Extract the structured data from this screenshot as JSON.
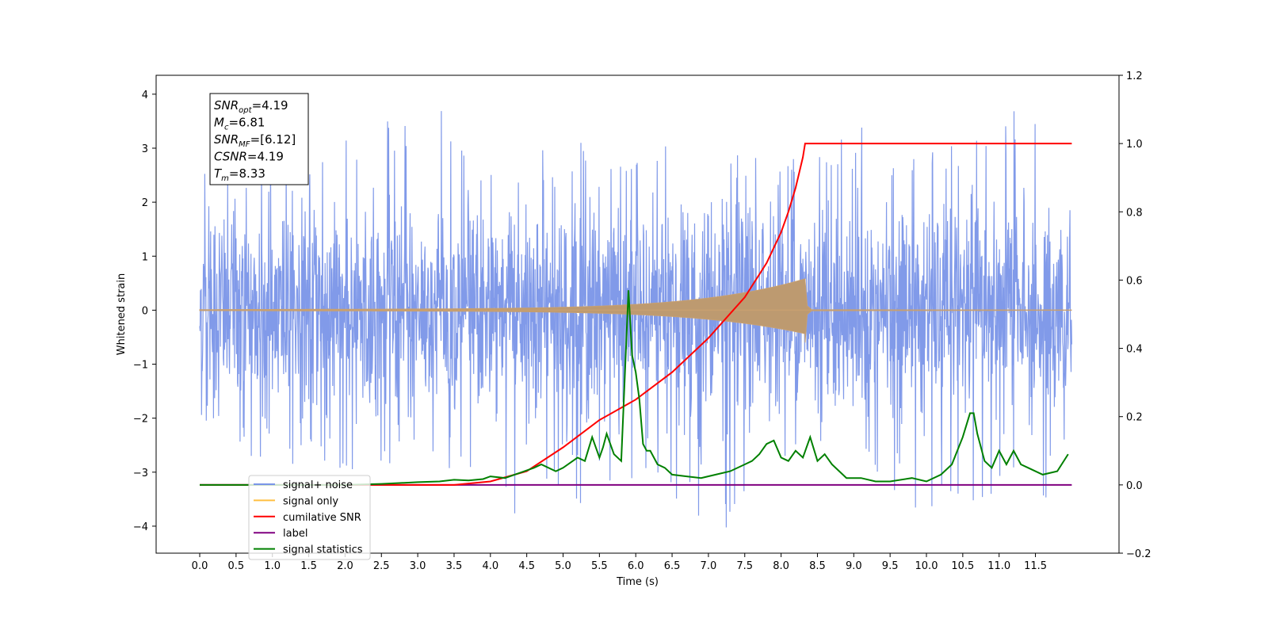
{
  "chart_data": {
    "type": "line",
    "xlabel": "Time (s)",
    "ylabel": "Whitened strain",
    "xlim": [
      -0.6,
      12.65
    ],
    "ylim": [
      -4.5,
      4.35
    ],
    "y2lim": [
      -0.2,
      1.2
    ],
    "x_ticks": [
      "0.0",
      "0.5",
      "1.0",
      "1.5",
      "2.0",
      "2.5",
      "3.0",
      "3.5",
      "4.0",
      "4.5",
      "5.0",
      "5.5",
      "6.0",
      "6.5",
      "7.0",
      "7.5",
      "8.0",
      "8.5",
      "9.0",
      "9.5",
      "10.0",
      "10.5",
      "11.0",
      "11.5"
    ],
    "y_ticks": [
      "4",
      "3",
      "2",
      "1",
      "0",
      "−1",
      "−2",
      "−3",
      "−4"
    ],
    "y2_ticks": [
      "1.2",
      "1.0",
      "0.8",
      "0.6",
      "0.4",
      "0.2",
      "0.0",
      "−0.2"
    ],
    "grid": false,
    "legend_position": "lower-left",
    "annotation": {
      "lines": [
        {
          "main": "SNR",
          "sub": "opt",
          "rest": "=4.19"
        },
        {
          "main": "M",
          "sub": "c",
          "rest": "=6.81"
        },
        {
          "main": "SNR",
          "sub": "MF",
          "rest": "=[6.12]"
        },
        {
          "main": "CSNR",
          "sub": "",
          "rest": "=4.19"
        },
        {
          "main": "T",
          "sub": "m",
          "rest": "=8.33"
        }
      ]
    },
    "series": [
      {
        "name": "signal+ noise",
        "color": "#7a95e8",
        "axis": "left",
        "x_range": [
          0.0,
          12.0
        ],
        "envelope": [
          {
            "t": 0.0,
            "min": -1.9,
            "max": 3.0
          },
          {
            "t": 0.5,
            "min": -2.7,
            "max": 2.3
          },
          {
            "t": 1.0,
            "min": -2.9,
            "max": 3.1
          },
          {
            "t": 1.5,
            "min": -2.8,
            "max": 2.6
          },
          {
            "t": 2.2,
            "min": -3.0,
            "max": 3.6
          },
          {
            "t": 3.2,
            "min": -2.6,
            "max": 4.0
          },
          {
            "t": 4.0,
            "min": -3.7,
            "max": 2.5
          },
          {
            "t": 4.5,
            "min": -3.8,
            "max": 2.7
          },
          {
            "t": 5.0,
            "min": -3.4,
            "max": 3.3
          },
          {
            "t": 5.4,
            "min": -3.8,
            "max": 3.2
          },
          {
            "t": 6.0,
            "min": -3.3,
            "max": 3.0
          },
          {
            "t": 7.2,
            "min": -4.1,
            "max": 3.1
          },
          {
            "t": 8.2,
            "min": -3.5,
            "max": 2.9
          },
          {
            "t": 9.2,
            "min": -3.0,
            "max": 3.5
          },
          {
            "t": 9.5,
            "min": -3.8,
            "max": 2.7
          },
          {
            "t": 10.5,
            "min": -3.6,
            "max": 3.3
          },
          {
            "t": 11.4,
            "min": -3.2,
            "max": 3.8
          },
          {
            "t": 11.8,
            "min": -4.0,
            "max": 2.9
          },
          {
            "t": 12.0,
            "min": -2.0,
            "max": 1.7
          }
        ]
      },
      {
        "name": "signal only",
        "color": "#ffbf40",
        "axis": "left",
        "chirp": {
          "t_merge": 8.33,
          "amp_at_merge": 0.55,
          "amp_start": 0.01
        }
      },
      {
        "name": "cumilative SNR",
        "color": "#ff0000",
        "axis": "right",
        "x": [
          0.0,
          3.5,
          4.0,
          4.5,
          5.0,
          5.5,
          6.0,
          6.5,
          7.0,
          7.5,
          7.8,
          8.0,
          8.1,
          8.2,
          8.3,
          8.33,
          9.0,
          10.0,
          11.0,
          12.0
        ],
        "values": [
          0.0,
          0.0,
          0.01,
          0.04,
          0.11,
          0.19,
          0.25,
          0.33,
          0.43,
          0.55,
          0.65,
          0.74,
          0.8,
          0.87,
          0.96,
          1.0,
          1.0,
          1.0,
          1.0,
          1.0
        ]
      },
      {
        "name": "label",
        "color": "#800080",
        "axis": "right",
        "x": [
          0.0,
          12.0
        ],
        "values": [
          0.0,
          0.0
        ]
      },
      {
        "name": "signal statistics",
        "color": "#008000",
        "axis": "right",
        "x": [
          0.0,
          2.0,
          2.5,
          3.0,
          3.3,
          3.5,
          3.7,
          3.9,
          4.0,
          4.2,
          4.4,
          4.6,
          4.7,
          4.9,
          5.0,
          5.2,
          5.3,
          5.4,
          5.5,
          5.55,
          5.6,
          5.7,
          5.8,
          5.9,
          5.95,
          6.0,
          6.05,
          6.1,
          6.15,
          6.2,
          6.3,
          6.4,
          6.5,
          6.7,
          6.9,
          7.1,
          7.3,
          7.5,
          7.6,
          7.7,
          7.8,
          7.9,
          8.0,
          8.1,
          8.2,
          8.3,
          8.4,
          8.5,
          8.6,
          8.7,
          8.8,
          8.9,
          9.1,
          9.3,
          9.5,
          9.8,
          10.0,
          10.2,
          10.35,
          10.5,
          10.6,
          10.65,
          10.7,
          10.8,
          10.9,
          11.0,
          11.1,
          11.2,
          11.3,
          11.4,
          11.6,
          11.8,
          11.95
        ],
        "values": [
          0.0,
          0.0,
          0.003,
          0.008,
          0.01,
          0.015,
          0.013,
          0.017,
          0.025,
          0.02,
          0.035,
          0.05,
          0.06,
          0.04,
          0.05,
          0.08,
          0.07,
          0.14,
          0.08,
          0.11,
          0.15,
          0.09,
          0.07,
          0.57,
          0.38,
          0.33,
          0.25,
          0.12,
          0.1,
          0.1,
          0.06,
          0.05,
          0.03,
          0.025,
          0.02,
          0.03,
          0.04,
          0.06,
          0.07,
          0.09,
          0.12,
          0.13,
          0.08,
          0.07,
          0.1,
          0.08,
          0.14,
          0.07,
          0.09,
          0.06,
          0.04,
          0.02,
          0.02,
          0.01,
          0.01,
          0.02,
          0.01,
          0.03,
          0.06,
          0.14,
          0.21,
          0.21,
          0.15,
          0.07,
          0.05,
          0.1,
          0.06,
          0.1,
          0.06,
          0.05,
          0.03,
          0.04,
          0.09
        ]
      }
    ]
  }
}
